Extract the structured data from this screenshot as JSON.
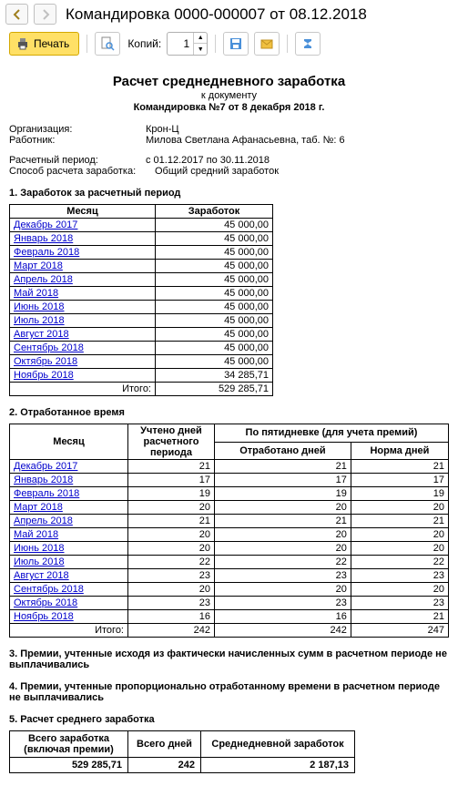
{
  "doc_title": "Командировка 0000-000007 от 08.12.2018",
  "toolbar": {
    "print_label": "Печать",
    "copies_label": "Копий:",
    "copies_value": "1"
  },
  "report": {
    "title": "Расчет среднедневного заработка",
    "sub1": "к документу",
    "sub2": "Командировка №7 от 8 декабря 2018 г.",
    "org_lbl": "Организация:",
    "org_val": "Крон-Ц",
    "emp_lbl": "Работник:",
    "emp_val": "Милова Светлана Афанасьевна, таб. №: 6",
    "per_lbl": "Расчетный период:",
    "per_val": "с 01.12.2017 по 30.11.2018",
    "met_lbl": "Способ расчета заработка:",
    "met_val": "Общий средний заработок"
  },
  "sec1": {
    "title": "1. Заработок за расчетный период",
    "col_month": "Месяц",
    "col_earn": "Заработок",
    "rows": [
      {
        "m": "Декабрь 2017",
        "v": "45 000,00"
      },
      {
        "m": "Январь 2018",
        "v": "45 000,00"
      },
      {
        "m": "Февраль 2018",
        "v": "45 000,00"
      },
      {
        "m": "Март 2018",
        "v": "45 000,00"
      },
      {
        "m": "Апрель 2018",
        "v": "45 000,00"
      },
      {
        "m": "Май 2018",
        "v": "45 000,00"
      },
      {
        "m": "Июнь 2018",
        "v": "45 000,00"
      },
      {
        "m": "Июль 2018",
        "v": "45 000,00"
      },
      {
        "m": "Август 2018",
        "v": "45 000,00"
      },
      {
        "m": "Сентябрь 2018",
        "v": "45 000,00"
      },
      {
        "m": "Октябрь 2018",
        "v": "45 000,00"
      },
      {
        "m": "Ноябрь 2018",
        "v": "34 285,71"
      }
    ],
    "total_lbl": "Итого:",
    "total_val": "529 285,71"
  },
  "sec2": {
    "title": "2. Отработанное время",
    "col_month": "Месяц",
    "col_days": "Учтено дней расчетного периода",
    "col_five": "По пятидневке (для учета премий)",
    "col_worked": "Отработано дней",
    "col_norm": "Норма дней",
    "rows": [
      {
        "m": "Декабрь 2017",
        "d": "21",
        "w": "21",
        "n": "21"
      },
      {
        "m": "Январь 2018",
        "d": "17",
        "w": "17",
        "n": "17"
      },
      {
        "m": "Февраль 2018",
        "d": "19",
        "w": "19",
        "n": "19"
      },
      {
        "m": "Март 2018",
        "d": "20",
        "w": "20",
        "n": "20"
      },
      {
        "m": "Апрель 2018",
        "d": "21",
        "w": "21",
        "n": "21"
      },
      {
        "m": "Май 2018",
        "d": "20",
        "w": "20",
        "n": "20"
      },
      {
        "m": "Июнь 2018",
        "d": "20",
        "w": "20",
        "n": "20"
      },
      {
        "m": "Июль 2018",
        "d": "22",
        "w": "22",
        "n": "22"
      },
      {
        "m": "Август 2018",
        "d": "23",
        "w": "23",
        "n": "23"
      },
      {
        "m": "Сентябрь 2018",
        "d": "20",
        "w": "20",
        "n": "20"
      },
      {
        "m": "Октябрь 2018",
        "d": "23",
        "w": "23",
        "n": "23"
      },
      {
        "m": "Ноябрь 2018",
        "d": "16",
        "w": "16",
        "n": "21"
      }
    ],
    "total_lbl": "Итого:",
    "t_d": "242",
    "t_w": "242",
    "t_n": "247"
  },
  "sec3": "3. Премии, учтенные исходя из фактически начисленных сумм в расчетном периоде не выплачивались",
  "sec4": "4. Премии, учтенные пропорционально отработанному времени в расчетном периоде не выплачивались",
  "sec5": {
    "title": "5. Расчет среднего  заработка",
    "col1a": "Всего заработка",
    "col1b": "(включая премии)",
    "col2": "Всего дней",
    "col3": "Среднедневной заработок",
    "v1": "529 285,71",
    "v2": "242",
    "v3": "2 187,13"
  }
}
